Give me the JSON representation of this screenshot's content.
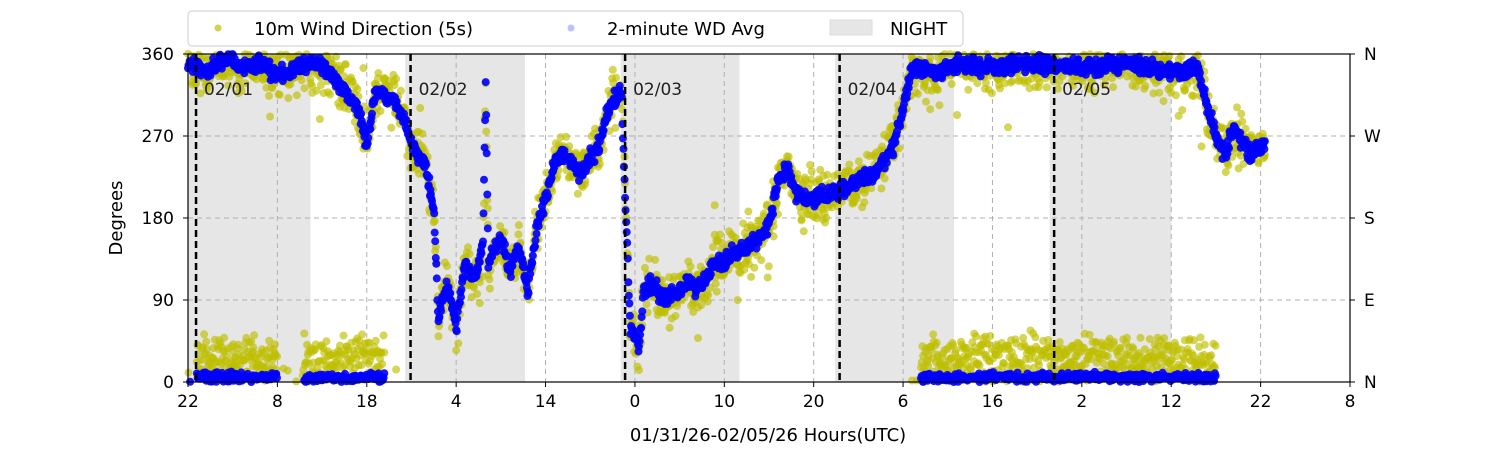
{
  "chart_data": {
    "type": "scatter",
    "title": "",
    "xlabel": "01/31/26-02/05/26  Hours(UTC)",
    "ylabel": "Degrees",
    "xlim_hours": [
      0,
      130
    ],
    "ylim": [
      0,
      360
    ],
    "x_tick_labels": [
      "22",
      "8",
      "18",
      "4",
      "14",
      "0",
      "10",
      "20",
      "6",
      "16",
      "2",
      "12",
      "22",
      "8"
    ],
    "y_ticks": [
      0,
      90,
      180,
      270,
      360
    ],
    "y_tick_labels": [
      "0",
      "90",
      "180",
      "270",
      "360"
    ],
    "y_right_tick_labels": [
      "N",
      "E",
      "S",
      "W",
      "N"
    ],
    "grid": true,
    "legend_position": "top-center outside",
    "legend": [
      {
        "label": "10m Wind Direction (5s)",
        "color": "#bfbf00"
      },
      {
        "label": "2-minute WD Avg",
        "color": "#0000ff"
      },
      {
        "label": "NIGHT",
        "color": "#e6e6e6"
      }
    ],
    "day_markers": [
      {
        "hour": 0.9,
        "label": "02/01"
      },
      {
        "hour": 24.9,
        "label": "02/02"
      },
      {
        "hour": 48.9,
        "label": "02/03"
      },
      {
        "hour": 72.9,
        "label": "02/04"
      },
      {
        "hour": 96.9,
        "label": "02/05"
      }
    ],
    "night_periods_hours": [
      [
        0,
        13.7
      ],
      [
        24.3,
        37.7
      ],
      [
        48.4,
        61.7
      ],
      [
        72.4,
        85.7
      ],
      [
        96.4,
        110
      ]
    ],
    "avg_trace_hours_degrees": [
      [
        0,
        350
      ],
      [
        2,
        340
      ],
      [
        4,
        355
      ],
      [
        6,
        345
      ],
      [
        8,
        350
      ],
      [
        10,
        335
      ],
      [
        12,
        345
      ],
      [
        14,
        350
      ],
      [
        16,
        340
      ],
      [
        17.5,
        320
      ],
      [
        19,
        300
      ],
      [
        20,
        260
      ],
      [
        21,
        320
      ],
      [
        23,
        310
      ],
      [
        24.5,
        280
      ],
      [
        25.5,
        250
      ],
      [
        26.5,
        240
      ],
      [
        27.5,
        190
      ],
      [
        28,
        70
      ],
      [
        29,
        110
      ],
      [
        30,
        60
      ],
      [
        31,
        130
      ],
      [
        32,
        110
      ],
      [
        33,
        150
      ],
      [
        33.3,
        330
      ],
      [
        33.6,
        130
      ],
      [
        35,
        160
      ],
      [
        36,
        120
      ],
      [
        37,
        150
      ],
      [
        38,
        100
      ],
      [
        39,
        170
      ],
      [
        40,
        200
      ],
      [
        41,
        240
      ],
      [
        42,
        250
      ],
      [
        44,
        230
      ],
      [
        46,
        260
      ],
      [
        47,
        300
      ],
      [
        48.5,
        320
      ],
      [
        49,
        180
      ],
      [
        49.5,
        60
      ],
      [
        50.5,
        40
      ],
      [
        51,
        100
      ],
      [
        52,
        110
      ],
      [
        53,
        90
      ],
      [
        55,
        100
      ],
      [
        56,
        110
      ],
      [
        57,
        100
      ],
      [
        59,
        130
      ],
      [
        61,
        140
      ],
      [
        63,
        150
      ],
      [
        65,
        170
      ],
      [
        66,
        220
      ],
      [
        67,
        235
      ],
      [
        68,
        210
      ],
      [
        69,
        200
      ],
      [
        71,
        205
      ],
      [
        73,
        210
      ],
      [
        75,
        220
      ],
      [
        77,
        230
      ],
      [
        79,
        260
      ],
      [
        80,
        300
      ],
      [
        81,
        345
      ],
      [
        84,
        340
      ],
      [
        86,
        350
      ],
      [
        90,
        345
      ],
      [
        95,
        350
      ],
      [
        100,
        345
      ],
      [
        105,
        350
      ],
      [
        110,
        340
      ],
      [
        113,
        345
      ],
      [
        114,
        300
      ],
      [
        115,
        270
      ],
      [
        116,
        250
      ],
      [
        117,
        280
      ],
      [
        118,
        260
      ],
      [
        119,
        250
      ],
      [
        120.5,
        260
      ]
    ],
    "north_band_hours": [
      [
        1,
        10
      ],
      [
        13,
        22
      ],
      [
        82,
        115
      ]
    ]
  }
}
